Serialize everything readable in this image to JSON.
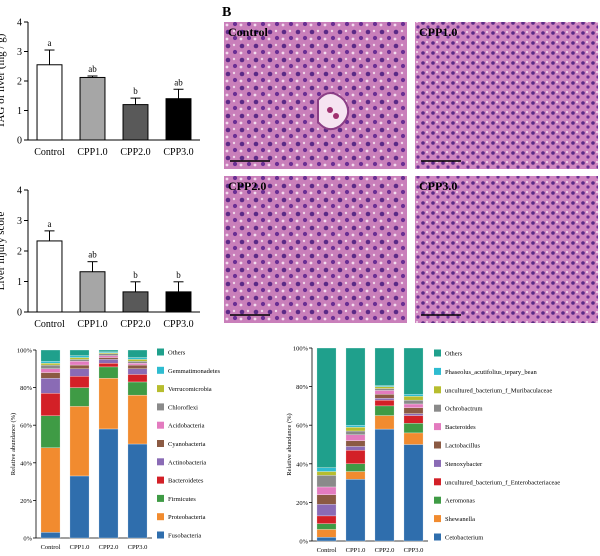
{
  "panel_label_b": "B",
  "histology": [
    {
      "label": "Control"
    },
    {
      "label": "CPP1.0"
    },
    {
      "label": "CPP2.0"
    },
    {
      "label": "CPP3.0"
    }
  ],
  "chart_data": [
    {
      "type": "bar",
      "categories": [
        "Control",
        "CPP1.0",
        "CPP2.0",
        "CPP3.0"
      ],
      "values": [
        2.55,
        2.12,
        1.2,
        1.4
      ],
      "errors": [
        0.5,
        0.05,
        0.22,
        0.32
      ],
      "significance": [
        "a",
        "ab",
        "b",
        "ab"
      ],
      "colors": [
        "#ffffff",
        "#a6a6a6",
        "#595959",
        "#000000"
      ],
      "ylabel": "TAG of liver (mg / g)",
      "ylim": [
        0,
        4
      ],
      "yticks": [
        "0",
        "1",
        "2",
        "3",
        "4"
      ]
    },
    {
      "type": "bar",
      "categories": [
        "Control",
        "CPP1.0",
        "CPP2.0",
        "CPP3.0"
      ],
      "values": [
        2.33,
        1.32,
        0.66,
        0.66
      ],
      "errors": [
        0.33,
        0.33,
        0.33,
        0.33
      ],
      "significance": [
        "a",
        "ab",
        "b",
        "b"
      ],
      "colors": [
        "#ffffff",
        "#a6a6a6",
        "#595959",
        "#000000"
      ],
      "ylabel": "Liver injury score",
      "ylim": [
        0,
        4
      ],
      "yticks": [
        "0",
        "1",
        "2",
        "3",
        "4"
      ]
    },
    {
      "type": "bar",
      "stacked": true,
      "categories": [
        "Control",
        "CPP1.0",
        "CPP2.0",
        "CPP3.0"
      ],
      "ylabel": "Relative abundance (%)",
      "ylim": [
        0,
        100
      ],
      "yticks": [
        "0%",
        "20%",
        "40%",
        "60%",
        "80%",
        "100%"
      ],
      "series": [
        {
          "name": "Fusobacteria",
          "color": "#2f6ead",
          "values": [
            3,
            33,
            58,
            50
          ]
        },
        {
          "name": "Proteobacteria",
          "color": "#f18b2f",
          "values": [
            45,
            37,
            27,
            26
          ]
        },
        {
          "name": "Firmicutes",
          "color": "#3f9b45",
          "values": [
            17,
            10,
            6,
            7
          ]
        },
        {
          "name": "Bacteroidetes",
          "color": "#d32027",
          "values": [
            12,
            6,
            2,
            4
          ]
        },
        {
          "name": "Actinobacteria",
          "color": "#8a6bb5",
          "values": [
            8,
            4,
            2,
            3
          ]
        },
        {
          "name": "Cyanobacteria",
          "color": "#8b5a43",
          "values": [
            3,
            2,
            1,
            2
          ]
        },
        {
          "name": "Acidobacteria",
          "color": "#e37bbf",
          "values": [
            2,
            2,
            1,
            1
          ]
        },
        {
          "name": "Chloroflexi",
          "color": "#8a8a8a",
          "values": [
            2,
            1,
            1,
            1
          ]
        },
        {
          "name": "Verrucomicrobia",
          "color": "#b7bd2e",
          "values": [
            1,
            1,
            0.5,
            1
          ]
        },
        {
          "name": "Gemmatimonadetes",
          "color": "#2ebcd0",
          "values": [
            1,
            1,
            0.5,
            1
          ]
        },
        {
          "name": "Others",
          "color": "#1fa08c",
          "values": [
            6,
            3,
            1,
            4
          ]
        }
      ]
    },
    {
      "type": "bar",
      "stacked": true,
      "categories": [
        "Control",
        "CPP1.0",
        "CPP2.0",
        "CPP3.0"
      ],
      "ylabel": "Relative abundance (%)",
      "ylim": [
        0,
        100
      ],
      "yticks": [
        "0%",
        "20%",
        "40%",
        "60%",
        "80%",
        "100%"
      ],
      "series": [
        {
          "name": "Cetobacterium",
          "color": "#2f6ead",
          "values": [
            2,
            32,
            58,
            50
          ]
        },
        {
          "name": "Shewanella",
          "color": "#f18b2f",
          "values": [
            4,
            4,
            7,
            6
          ]
        },
        {
          "name": "Aeromonas",
          "color": "#3f9b45",
          "values": [
            3,
            4,
            5,
            5
          ]
        },
        {
          "name": "uncultured_bacterium_f_Enterobacteriaceae",
          "color": "#d32027",
          "values": [
            4,
            7,
            3,
            4
          ]
        },
        {
          "name": "Stenoxybacter",
          "color": "#8a6bb5",
          "values": [
            6,
            2,
            1,
            1
          ]
        },
        {
          "name": "Lactobacillus",
          "color": "#8b5a43",
          "values": [
            5,
            3,
            2,
            3
          ]
        },
        {
          "name": "Bacteroides",
          "color": "#e37bbf",
          "values": [
            4,
            3,
            2,
            2
          ]
        },
        {
          "name": "Ochrobactrum",
          "color": "#8a8a8a",
          "values": [
            6,
            2,
            1,
            2
          ]
        },
        {
          "name": "uncultured_bacterium_f_Muribaculaceae",
          "color": "#b7bd2e",
          "values": [
            2,
            2,
            1,
            2
          ]
        },
        {
          "name": "Phaseolus_acutifolius_tepary_bean",
          "color": "#2ebcd0",
          "values": [
            2,
            1,
            0.5,
            1
          ]
        },
        {
          "name": "Others",
          "color": "#1fa08c",
          "values": [
            62,
            40,
            19.5,
            24
          ]
        }
      ]
    }
  ]
}
